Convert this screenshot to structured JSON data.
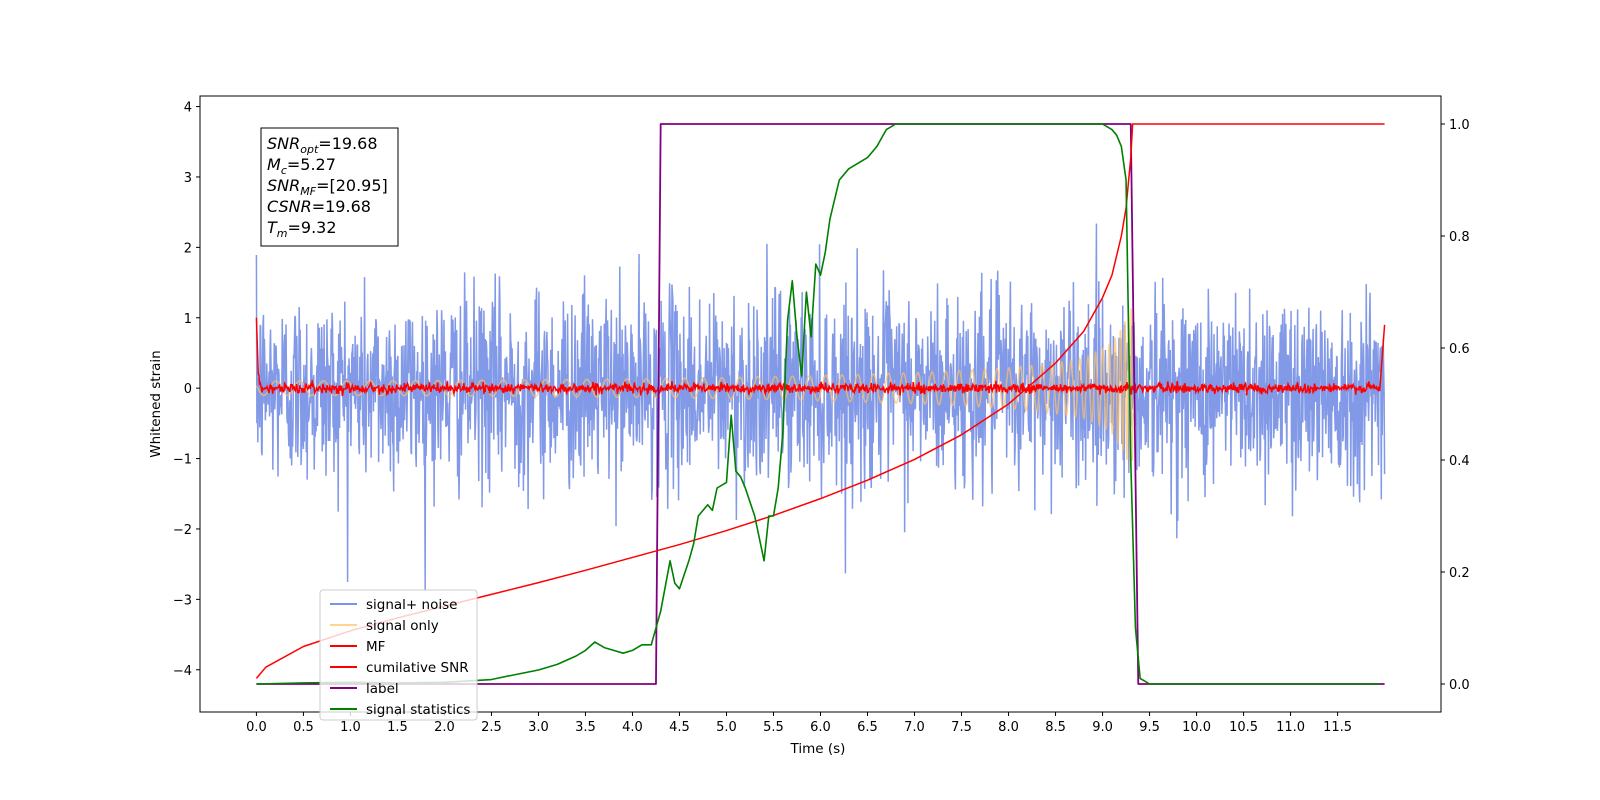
{
  "chart_data": {
    "type": "line",
    "title": "",
    "xlabel": "Time (s)",
    "ylabel": "Whitened strain",
    "xlim": [
      -0.6,
      12.6
    ],
    "ylim": [
      -4.6,
      4.15
    ],
    "y2lim": [
      -0.05,
      1.05
    ],
    "xticks": [
      "0.0",
      "0.5",
      "1.0",
      "1.5",
      "2.0",
      "2.5",
      "3.0",
      "3.5",
      "4.0",
      "4.5",
      "5.0",
      "5.5",
      "6.0",
      "6.5",
      "7.0",
      "7.5",
      "8.0",
      "8.5",
      "9.0",
      "9.5",
      "10.0",
      "10.5",
      "11.0",
      "11.5"
    ],
    "yticks": [
      "4",
      "3",
      "2",
      "1",
      "0",
      "−1",
      "−2",
      "−3",
      "−4"
    ],
    "y2ticks": [
      "1.0",
      "0.8",
      "0.6",
      "0.4",
      "0.2",
      "0.0"
    ],
    "grid": false,
    "legend_position": "bottom-left",
    "legend": [
      "signal+ noise",
      "signal only",
      "MF",
      "cumilative SNR",
      "label",
      "signal statistics"
    ],
    "annotation": {
      "lines": [
        {
          "base": "SNR",
          "sub": "opt",
          "value": "=19.68"
        },
        {
          "base": "M",
          "sub": "c",
          "value": "=5.27"
        },
        {
          "base": "SNR",
          "sub": "MF",
          "value": "=[20.95]"
        },
        {
          "base": "CSNR",
          "sub": "",
          "value": "=19.68"
        },
        {
          "base": "T",
          "sub": "m",
          "value": "=9.32"
        }
      ]
    },
    "series": [
      {
        "name": "signal+ noise",
        "color": "#7b94e6",
        "axis": "left",
        "kind": "noise",
        "x_range": [
          0,
          12
        ],
        "typical_range": [
          -1.5,
          1.5
        ],
        "peak_range": [
          -4.15,
          3.75
        ]
      },
      {
        "name": "signal only",
        "color": "#ffc064",
        "axis": "left",
        "kind": "chirp",
        "x_range": [
          0,
          9.32
        ],
        "envelope": {
          "x": [
            0,
            2,
            4,
            5,
            6,
            7,
            7.5,
            8,
            8.5,
            8.8,
            9.0,
            9.1,
            9.2,
            9.25,
            9.3,
            9.32
          ],
          "amp": [
            0.1,
            0.11,
            0.13,
            0.15,
            0.18,
            0.22,
            0.25,
            0.29,
            0.36,
            0.43,
            0.55,
            0.65,
            0.85,
            1.0,
            1.2,
            1.3
          ]
        }
      },
      {
        "name": "MF",
        "color": "#ff0000",
        "axis": "left",
        "kind": "flat",
        "x": [
          0,
          0.02,
          0.05,
          11.95,
          12
        ],
        "y": [
          1.0,
          0.2,
          0.0,
          0.0,
          0.9
        ]
      },
      {
        "name": "cumilative SNR",
        "color": "#ff0000",
        "axis": "right",
        "x": [
          0,
          0.1,
          0.5,
          1,
          1.5,
          2,
          2.5,
          3,
          3.5,
          4,
          4.5,
          5,
          5.5,
          6,
          6.5,
          7,
          7.5,
          8,
          8.5,
          8.8,
          9,
          9.1,
          9.2,
          9.25,
          9.3,
          9.32,
          12
        ],
        "y": [
          0.01,
          0.03,
          0.067,
          0.095,
          0.118,
          0.139,
          0.16,
          0.181,
          0.203,
          0.226,
          0.249,
          0.274,
          0.301,
          0.331,
          0.364,
          0.401,
          0.445,
          0.5,
          0.573,
          0.63,
          0.69,
          0.73,
          0.8,
          0.85,
          0.94,
          1.0,
          1.0
        ]
      },
      {
        "name": "label",
        "color": "#800080",
        "axis": "right",
        "x": [
          0,
          4.25,
          4.3,
          9.3,
          9.38,
          12
        ],
        "y": [
          0,
          0,
          1,
          1,
          0,
          0
        ]
      },
      {
        "name": "signal statistics",
        "color": "#008000",
        "axis": "right",
        "x": [
          0,
          0.5,
          1.0,
          1.5,
          2.0,
          2.3,
          2.5,
          2.7,
          3.0,
          3.2,
          3.4,
          3.5,
          3.6,
          3.7,
          3.8,
          3.9,
          4.0,
          4.1,
          4.2,
          4.3,
          4.4,
          4.45,
          4.5,
          4.6,
          4.65,
          4.7,
          4.8,
          4.85,
          4.9,
          5.0,
          5.05,
          5.1,
          5.15,
          5.2,
          5.3,
          5.4,
          5.45,
          5.5,
          5.55,
          5.6,
          5.65,
          5.7,
          5.75,
          5.8,
          5.85,
          5.9,
          5.95,
          6.0,
          6.05,
          6.1,
          6.2,
          6.3,
          6.4,
          6.5,
          6.6,
          6.7,
          6.8,
          6.9,
          7.0,
          7.5,
          8.0,
          8.5,
          9.0,
          9.1,
          9.15,
          9.2,
          9.25,
          9.3,
          9.35,
          9.4,
          9.5,
          10.0,
          11.0,
          11.95
        ],
        "y": [
          0.0,
          0.002,
          0.003,
          0.002,
          0.003,
          0.006,
          0.008,
          0.015,
          0.025,
          0.035,
          0.05,
          0.06,
          0.075,
          0.065,
          0.06,
          0.055,
          0.06,
          0.07,
          0.07,
          0.13,
          0.22,
          0.18,
          0.17,
          0.22,
          0.25,
          0.3,
          0.32,
          0.31,
          0.35,
          0.36,
          0.48,
          0.38,
          0.37,
          0.35,
          0.3,
          0.22,
          0.3,
          0.3,
          0.35,
          0.45,
          0.65,
          0.72,
          0.62,
          0.55,
          0.7,
          0.62,
          0.75,
          0.73,
          0.77,
          0.83,
          0.9,
          0.92,
          0.93,
          0.94,
          0.96,
          0.99,
          1.0,
          1.0,
          1.0,
          1.0,
          1.0,
          1.0,
          1.0,
          0.99,
          0.98,
          0.96,
          0.9,
          0.4,
          0.1,
          0.01,
          0.0,
          0.0,
          0.0,
          0.0
        ]
      }
    ]
  }
}
